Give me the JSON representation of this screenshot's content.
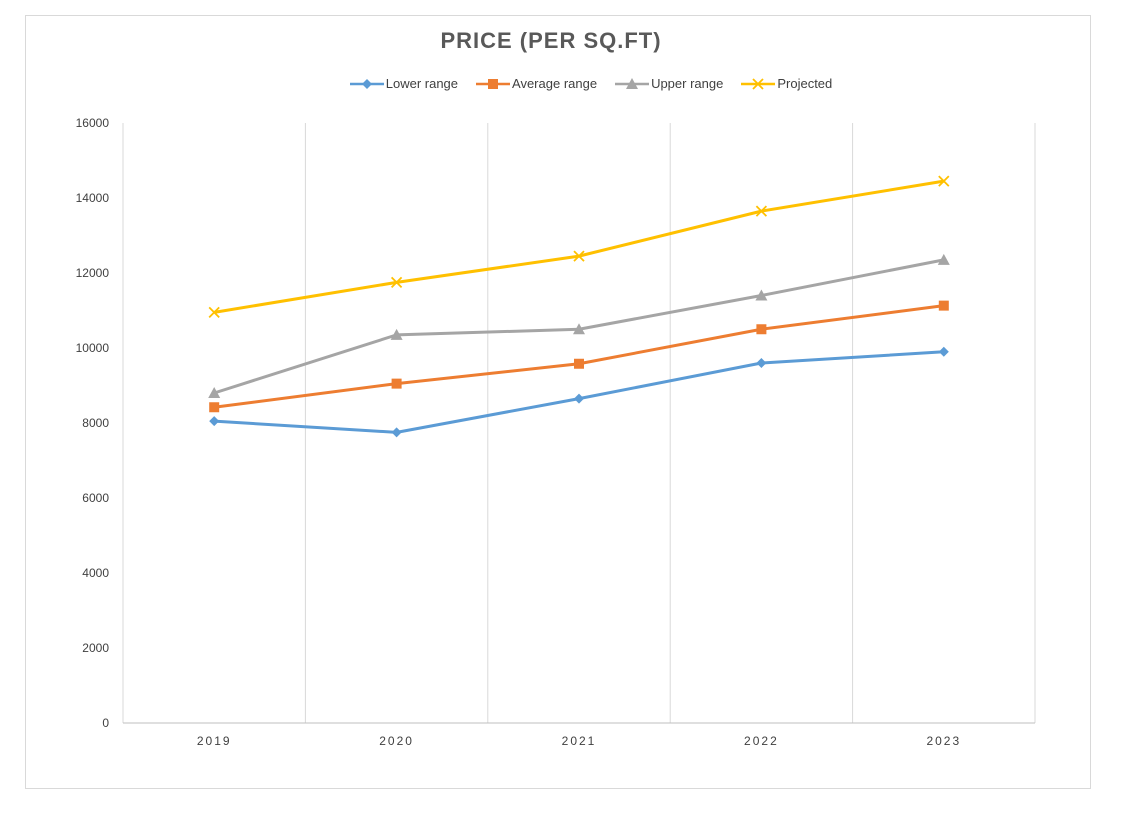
{
  "chart_data": {
    "type": "line",
    "title": "PRICE (PER SQ.FT)",
    "categories": [
      "2019",
      "2020",
      "2021",
      "2022",
      "2023"
    ],
    "series": [
      {
        "name": "Lower range",
        "values": [
          8050,
          7750,
          8650,
          9600,
          9900
        ],
        "color": "#5B9BD5",
        "marker": "diamond"
      },
      {
        "name": "Average range",
        "values": [
          8420,
          9050,
          9580,
          10500,
          11130
        ],
        "color": "#ED7D31",
        "marker": "square"
      },
      {
        "name": "Upper range",
        "values": [
          8800,
          10350,
          10500,
          11400,
          12350
        ],
        "color": "#A5A5A5",
        "marker": "triangle"
      },
      {
        "name": "Projected",
        "values": [
          10950,
          11750,
          12450,
          13650,
          14450
        ],
        "color": "#FFC000",
        "marker": "x"
      }
    ],
    "ylim": [
      0,
      16000
    ],
    "yticks": [
      0,
      2000,
      4000,
      6000,
      8000,
      10000,
      12000,
      14000,
      16000
    ],
    "xlabel": "",
    "ylabel": "",
    "grid": "vertical",
    "legend_position": "top"
  }
}
